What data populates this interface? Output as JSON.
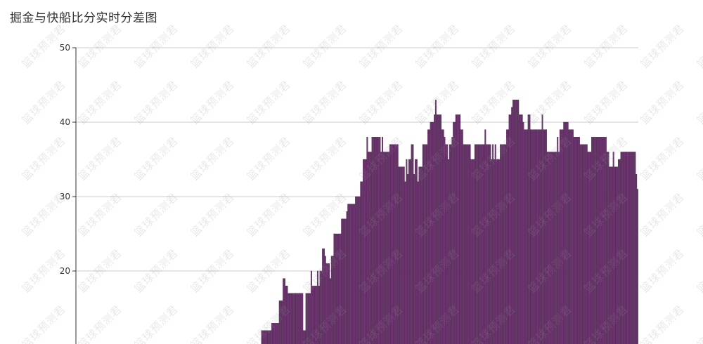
{
  "watermark_text": "篮球预测君",
  "colors": {
    "bar_fill": "#6e3670",
    "bar_stroke": "#3d1540",
    "grid": "#cccccc",
    "axis": "#333333"
  },
  "chart_data": {
    "type": "bar",
    "title": "掘金与快船比分实时分差图",
    "xlabel": "",
    "ylabel": "",
    "ylim_visible": [
      10,
      50
    ],
    "yticks": [
      20,
      30,
      40,
      50
    ],
    "grid": true,
    "values": [
      0,
      0,
      0,
      0,
      0,
      0,
      0,
      0,
      0,
      0,
      0,
      0,
      0,
      0,
      0,
      0,
      0,
      0,
      0,
      0,
      0,
      0,
      0,
      0,
      0,
      0,
      0,
      0,
      0,
      0,
      0,
      0,
      0,
      0,
      0,
      0,
      0,
      0,
      0,
      0,
      0,
      0,
      0,
      0,
      0,
      0,
      0,
      0,
      0,
      0,
      0,
      0,
      0,
      0,
      0,
      0,
      0,
      0,
      0,
      0,
      0,
      0,
      0,
      0,
      0,
      0,
      0,
      0,
      0,
      0,
      0,
      0,
      0,
      0,
      0,
      0,
      0,
      0,
      0,
      0,
      0,
      0,
      0,
      0,
      0,
      0,
      0,
      0,
      0,
      0,
      0,
      0,
      0,
      0,
      0,
      0,
      0,
      0,
      0,
      0,
      0,
      0,
      0,
      0,
      0,
      0,
      0,
      0,
      0,
      0,
      0,
      0,
      0,
      0,
      0,
      0,
      0,
      0,
      0,
      0,
      0,
      0,
      0,
      0,
      0,
      0,
      0,
      0,
      0,
      0,
      0,
      0,
      0,
      0,
      0,
      0,
      0,
      0,
      0,
      0,
      0,
      0,
      0,
      0,
      0,
      0,
      12,
      12,
      12,
      12,
      12,
      12,
      12,
      12,
      13,
      13,
      13,
      13,
      13,
      13,
      16,
      16,
      16,
      19,
      19,
      18,
      18,
      17,
      17,
      17,
      17,
      17,
      17,
      17,
      17,
      17,
      17,
      17,
      17,
      12,
      12,
      17,
      17,
      17,
      17,
      20,
      18,
      18,
      18,
      18,
      20,
      18,
      20,
      20,
      23,
      23,
      22,
      21,
      21,
      21,
      19,
      22,
      22,
      25,
      25,
      25,
      25,
      25,
      25,
      27,
      27,
      27,
      27,
      28,
      29,
      29,
      29,
      29,
      29,
      29,
      30,
      30,
      30,
      30,
      32,
      32,
      35,
      35,
      35,
      38,
      36,
      36,
      36,
      38,
      38,
      38,
      38,
      38,
      38,
      38,
      36,
      38,
      36,
      36,
      36,
      36,
      36,
      37,
      37,
      37,
      37,
      37,
      37,
      37,
      34,
      34,
      34,
      34,
      34,
      32,
      35,
      33,
      35,
      35,
      37,
      37,
      33,
      35,
      35,
      32,
      34,
      34,
      34,
      37,
      37,
      37,
      37,
      39,
      39,
      40,
      40,
      40,
      41,
      43,
      41,
      41,
      41,
      41,
      39,
      39,
      38,
      37,
      37,
      35,
      37,
      37,
      38,
      40,
      40,
      41,
      41,
      41,
      41,
      39,
      39,
      37,
      37,
      37,
      37,
      37,
      37,
      35,
      35,
      35,
      37,
      37,
      37,
      37,
      37,
      37,
      37,
      37,
      39,
      37,
      37,
      37,
      37,
      35,
      37,
      35,
      37,
      35,
      35,
      35,
      37,
      37,
      37,
      37,
      37,
      39,
      39,
      41,
      41,
      42,
      43,
      43,
      43,
      43,
      43,
      41,
      41,
      41,
      40,
      39,
      39,
      39,
      41,
      41,
      39,
      39,
      39,
      39,
      39,
      39,
      39,
      39,
      39,
      41,
      39,
      39,
      39,
      36,
      36,
      36,
      36,
      36,
      36,
      36,
      36,
      38,
      36,
      39,
      39,
      39,
      40,
      40,
      40,
      40,
      39,
      39,
      39,
      39,
      38,
      38,
      38,
      38,
      38,
      37,
      37,
      37,
      37,
      37,
      37,
      36,
      36,
      36,
      38,
      38,
      38,
      38,
      38,
      38,
      38,
      38,
      38,
      38,
      38,
      38,
      36,
      36,
      34,
      34,
      34,
      36,
      34,
      34,
      34,
      35,
      35,
      36,
      36,
      36,
      36,
      36,
      36,
      36,
      36,
      36,
      36,
      36,
      36,
      33,
      31
    ]
  }
}
